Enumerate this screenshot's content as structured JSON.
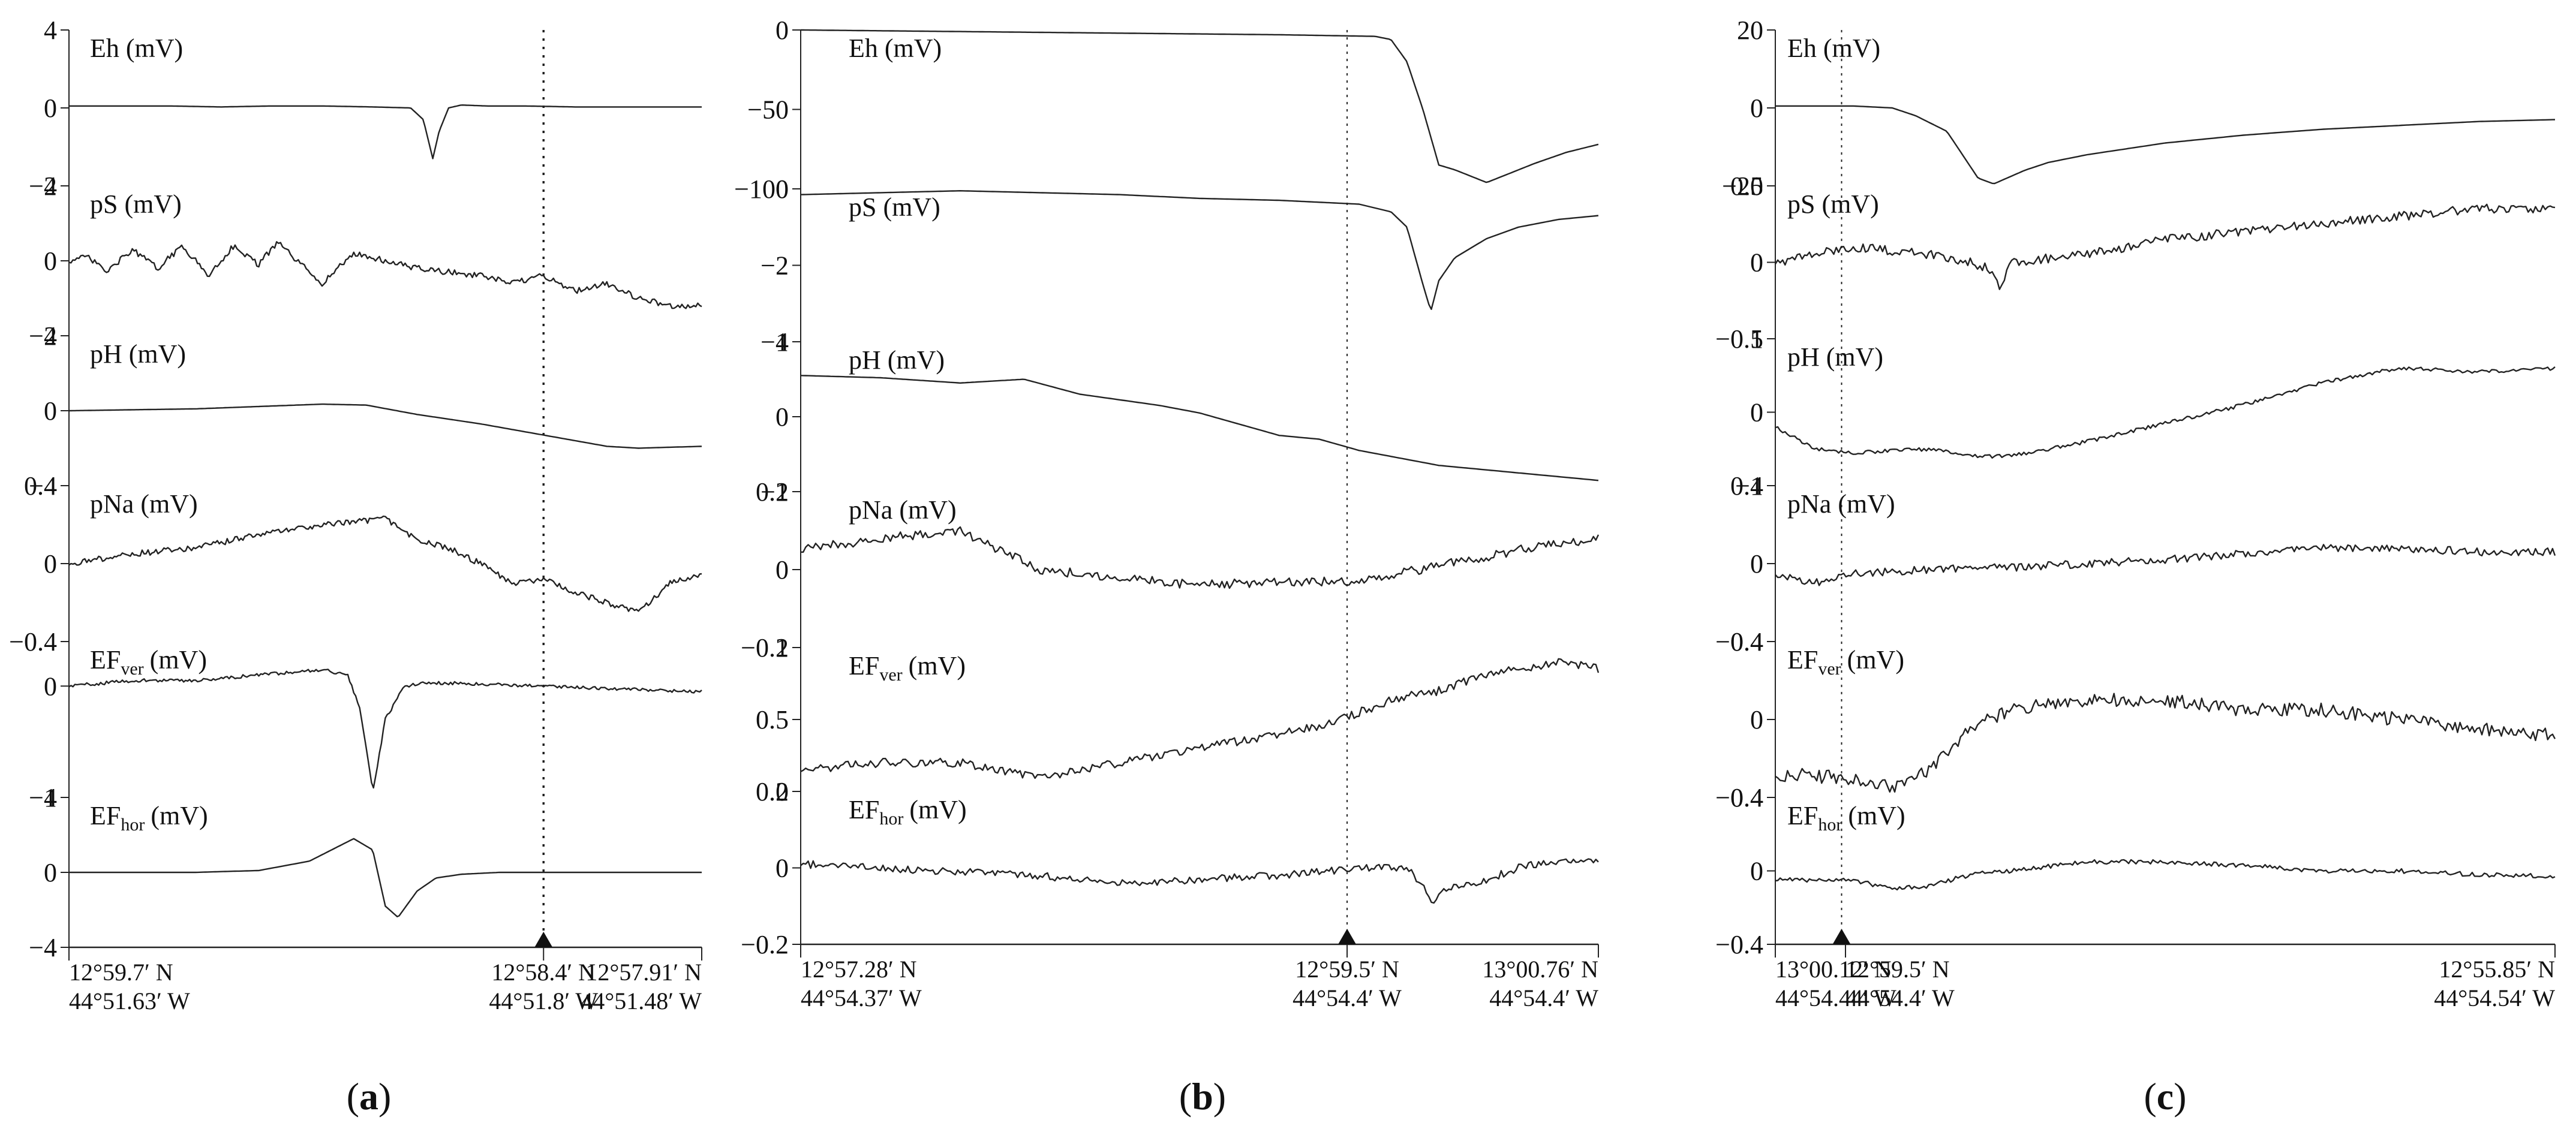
{
  "figure": {
    "subfigure_labels": [
      "a",
      "b",
      "c"
    ]
  },
  "chart_data": [
    {
      "type": "line",
      "id": "a",
      "caption": "a",
      "marker": {
        "dotted": true,
        "triangle": true
      },
      "panels": [
        {
          "label": "Eh",
          "sub": "",
          "unit": "(mV)",
          "ylim": [
            -4,
            4
          ],
          "ticks": [
            "4",
            "0",
            "−4"
          ],
          "tick_values": [
            4,
            0,
            -4
          ],
          "x": [
            0,
            0.08,
            0.16,
            0.24,
            0.32,
            0.4,
            0.48,
            0.54,
            0.56,
            0.575,
            0.585,
            0.6,
            0.62,
            0.66,
            0.72,
            0.8,
            0.9,
            1.0
          ],
          "y": [
            0.1,
            0.1,
            0.1,
            0.05,
            0.1,
            0.1,
            0.05,
            0.0,
            -0.6,
            -2.6,
            -1.2,
            0.0,
            0.15,
            0.1,
            0.1,
            0.05,
            0.05,
            0.05
          ]
        },
        {
          "label": "pS",
          "sub": "",
          "unit": "(mV)",
          "ylim": [
            -2,
            2
          ],
          "ticks": [
            "2",
            "0",
            "−2"
          ],
          "tick_values": [
            2,
            0,
            -2
          ],
          "noise": 0.08,
          "x": [
            0,
            0.03,
            0.06,
            0.1,
            0.14,
            0.18,
            0.22,
            0.26,
            0.3,
            0.33,
            0.36,
            0.4,
            0.45,
            0.5,
            0.55,
            0.6,
            0.65,
            0.7,
            0.75,
            0.8,
            0.85,
            0.9,
            0.95,
            1.0
          ],
          "y": [
            0.0,
            0.1,
            -0.3,
            0.3,
            -0.2,
            0.4,
            -0.4,
            0.4,
            -0.1,
            0.5,
            0.0,
            -0.6,
            0.2,
            0.0,
            -0.2,
            -0.3,
            -0.4,
            -0.6,
            -0.4,
            -0.8,
            -0.6,
            -1.0,
            -1.2,
            -1.2
          ]
        },
        {
          "label": "pH",
          "sub": "",
          "unit": "(mV)",
          "ylim": [
            -4,
            4
          ],
          "ticks": [
            "4",
            "0",
            "−4"
          ],
          "tick_values": [
            4,
            0,
            -4
          ],
          "x": [
            0,
            0.2,
            0.4,
            0.47,
            0.55,
            0.65,
            0.75,
            0.85,
            0.9,
            1.0
          ],
          "y": [
            0,
            0.1,
            0.35,
            0.3,
            -0.2,
            -0.7,
            -1.3,
            -1.9,
            -2.0,
            -1.9
          ]
        },
        {
          "label": "pNa",
          "sub": "",
          "unit": "(mV)",
          "ylim": [
            -0.4,
            0.4
          ],
          "ticks": [
            "0.4",
            "0",
            "−0.4"
          ],
          "tick_values": [
            0.4,
            0,
            -0.4
          ],
          "noise": 0.015,
          "x": [
            0,
            0.1,
            0.2,
            0.3,
            0.4,
            0.5,
            0.55,
            0.6,
            0.65,
            0.7,
            0.75,
            0.8,
            0.85,
            0.9,
            0.95,
            1.0
          ],
          "y": [
            0.0,
            0.05,
            0.08,
            0.15,
            0.2,
            0.23,
            0.12,
            0.08,
            0.0,
            -0.1,
            -0.08,
            -0.15,
            -0.2,
            -0.25,
            -0.1,
            -0.06
          ]
        },
        {
          "label": "EF",
          "sub": "ver",
          "unit": "(mV)",
          "ylim": [
            -1,
            0.4
          ],
          "ticks": [
            "0",
            "−1"
          ],
          "tick_values": [
            0,
            -1
          ],
          "noise": 0.015,
          "x": [
            0,
            0.1,
            0.2,
            0.3,
            0.4,
            0.44,
            0.46,
            0.48,
            0.5,
            0.53,
            0.56,
            0.65,
            0.75,
            0.85,
            1.0
          ],
          "y": [
            0.0,
            0.05,
            0.05,
            0.1,
            0.15,
            0.1,
            -0.2,
            -0.95,
            -0.3,
            0.0,
            0.03,
            0.02,
            0.0,
            -0.02,
            -0.05
          ]
        },
        {
          "label": "EF",
          "sub": "hor",
          "unit": "(mV)",
          "ylim": [
            -4,
            4
          ],
          "ticks": [
            "4",
            "0",
            "−4"
          ],
          "tick_values": [
            4,
            0,
            -4
          ],
          "x": [
            0,
            0.1,
            0.2,
            0.3,
            0.38,
            0.45,
            0.48,
            0.5,
            0.52,
            0.55,
            0.58,
            0.62,
            0.68,
            0.75,
            0.85,
            1.0
          ],
          "y": [
            0,
            0,
            0,
            0.1,
            0.6,
            1.8,
            1.2,
            -1.8,
            -2.4,
            -1.0,
            -0.3,
            -0.1,
            0.0,
            0.0,
            0.0,
            0.0
          ]
        }
      ],
      "x_annotations": [
        {
          "pos": 0.0,
          "anchor": "start",
          "lines": [
            "12°59.7′ N",
            "44°51.63′ W"
          ]
        },
        {
          "pos": 0.75,
          "anchor": "middle",
          "lines": [
            "12°58.4′ N",
            "44°51.8′ W"
          ]
        },
        {
          "pos": 1.0,
          "anchor": "end",
          "lines": [
            "12°57.91′ N",
            "44°51.48′ W"
          ]
        }
      ],
      "marker_pos": 0.75
    },
    {
      "type": "line",
      "id": "b",
      "caption": "b",
      "marker": {
        "dotted": true,
        "triangle": true
      },
      "panels": [
        {
          "label": "Eh",
          "sub": "",
          "unit": "(mV)",
          "ylim": [
            -100,
            0
          ],
          "ticks": [
            "0",
            "−50",
            "−100"
          ],
          "tick_values": [
            0,
            -50,
            -100
          ],
          "x": [
            0,
            0.2,
            0.4,
            0.6,
            0.72,
            0.74,
            0.76,
            0.78,
            0.8,
            0.82,
            0.84,
            0.86,
            0.88,
            0.92,
            0.96,
            1.0
          ],
          "y": [
            0,
            -1,
            -2,
            -3,
            -4,
            -6,
            -20,
            -50,
            -85,
            -88,
            -92,
            -96,
            -92,
            -84,
            -77,
            -72
          ]
        },
        {
          "label": "pS",
          "sub": "",
          "unit": "(mV)",
          "ylim": [
            -4,
            0
          ],
          "ticks": [
            "0",
            "−2",
            "−4"
          ],
          "tick_values": [
            0,
            -2,
            -4
          ],
          "x": [
            0,
            0.1,
            0.2,
            0.3,
            0.4,
            0.5,
            0.6,
            0.7,
            0.74,
            0.76,
            0.78,
            0.79,
            0.8,
            0.82,
            0.86,
            0.9,
            0.95,
            1.0
          ],
          "y": [
            -0.15,
            -0.1,
            -0.05,
            -0.1,
            -0.15,
            -0.25,
            -0.3,
            -0.4,
            -0.6,
            -1.0,
            -2.5,
            -3.2,
            -2.4,
            -1.8,
            -1.3,
            -1.0,
            -0.8,
            -0.7
          ]
        },
        {
          "label": "pH",
          "sub": "",
          "unit": "(mV)",
          "ylim": [
            -1,
            1
          ],
          "ticks": [
            "1",
            "0",
            "−1"
          ],
          "tick_values": [
            1,
            0,
            -1
          ],
          "x": [
            0,
            0.1,
            0.2,
            0.28,
            0.35,
            0.45,
            0.5,
            0.55,
            0.6,
            0.65,
            0.7,
            0.75,
            0.8,
            0.85,
            0.9,
            0.95,
            1.0
          ],
          "y": [
            0.55,
            0.52,
            0.45,
            0.5,
            0.3,
            0.15,
            0.05,
            -0.1,
            -0.25,
            -0.3,
            -0.45,
            -0.55,
            -0.65,
            -0.7,
            -0.75,
            -0.8,
            -0.85
          ]
        },
        {
          "label": "pNa",
          "sub": "",
          "unit": "(mV)",
          "ylim": [
            -0.2,
            0.2
          ],
          "ticks": [
            "0.2",
            "0",
            "−0.2"
          ],
          "tick_values": [
            0.2,
            0,
            -0.2
          ],
          "noise": 0.012,
          "x": [
            0,
            0.1,
            0.2,
            0.25,
            0.3,
            0.4,
            0.5,
            0.6,
            0.7,
            0.75,
            0.8,
            0.9,
            1.0
          ],
          "y": [
            0.05,
            0.08,
            0.1,
            0.05,
            0.0,
            -0.02,
            -0.04,
            -0.03,
            -0.03,
            -0.01,
            0.01,
            0.05,
            0.08
          ]
        },
        {
          "label": "EF",
          "sub": "ver",
          "unit": "(mV)",
          "ylim": [
            0,
            1
          ],
          "ticks": [
            "1",
            "0.5",
            "0"
          ],
          "tick_values": [
            1,
            0.5,
            0
          ],
          "noise": 0.03,
          "x": [
            0,
            0.1,
            0.2,
            0.3,
            0.4,
            0.5,
            0.6,
            0.65,
            0.7,
            0.75,
            0.8,
            0.85,
            0.9,
            0.95,
            1.0
          ],
          "y": [
            0.15,
            0.2,
            0.2,
            0.1,
            0.2,
            0.3,
            0.4,
            0.45,
            0.55,
            0.65,
            0.7,
            0.8,
            0.85,
            0.9,
            0.85
          ]
        },
        {
          "label": "EF",
          "sub": "hor",
          "unit": "(mV)",
          "ylim": [
            -0.2,
            0.2
          ],
          "ticks": [
            "0.2",
            "0",
            "−0.2"
          ],
          "tick_values": [
            0.2,
            0,
            -0.2
          ],
          "noise": 0.01,
          "x": [
            0,
            0.1,
            0.2,
            0.3,
            0.4,
            0.5,
            0.6,
            0.7,
            0.76,
            0.78,
            0.79,
            0.8,
            0.82,
            0.86,
            0.9,
            0.95,
            1.0
          ],
          "y": [
            0.01,
            0.0,
            -0.01,
            -0.02,
            -0.04,
            -0.03,
            -0.02,
            0.0,
            0.0,
            -0.05,
            -0.09,
            -0.07,
            -0.05,
            -0.03,
            0.0,
            0.02,
            0.02
          ]
        }
      ],
      "x_annotations": [
        {
          "pos": 0.0,
          "anchor": "start",
          "lines": [
            "12°57.28′ N",
            "44°54.37′ W"
          ]
        },
        {
          "pos": 0.685,
          "anchor": "middle",
          "lines": [
            "12°59.5′ N",
            "44°54.4′ W"
          ]
        },
        {
          "pos": 1.0,
          "anchor": "end",
          "lines": [
            "13°00.76′ N",
            "44°54.4′ W"
          ]
        }
      ],
      "marker_pos": 0.685
    },
    {
      "type": "line",
      "id": "c",
      "caption": "c",
      "marker": {
        "dotted": true,
        "triangle": true
      },
      "panels": [
        {
          "label": "Eh",
          "sub": "",
          "unit": "(mV)",
          "ylim": [
            -20,
            20
          ],
          "ticks": [
            "20",
            "0",
            "−20"
          ],
          "tick_values": [
            20,
            0,
            -20
          ],
          "x": [
            0,
            0.1,
            0.15,
            0.18,
            0.22,
            0.26,
            0.28,
            0.32,
            0.35,
            0.4,
            0.5,
            0.6,
            0.7,
            0.8,
            0.9,
            1.0
          ],
          "y": [
            0.5,
            0.5,
            0.0,
            -2.0,
            -6.0,
            -18.0,
            -19.5,
            -16.0,
            -14.0,
            -12.0,
            -9.0,
            -7.0,
            -5.5,
            -4.5,
            -3.5,
            -3.0
          ]
        },
        {
          "label": "pS",
          "sub": "",
          "unit": "(mV)",
          "ylim": [
            -0.5,
            0.5
          ],
          "ticks": [
            "0.5",
            "0",
            "−0.5"
          ],
          "tick_values": [
            0.5,
            0,
            -0.5
          ],
          "noise": 0.03,
          "x": [
            0,
            0.1,
            0.2,
            0.25,
            0.28,
            0.29,
            0.3,
            0.4,
            0.5,
            0.6,
            0.7,
            0.8,
            0.9,
            1.0
          ],
          "y": [
            0.0,
            0.1,
            0.05,
            0.0,
            -0.05,
            -0.18,
            0.0,
            0.05,
            0.15,
            0.2,
            0.25,
            0.3,
            0.35,
            0.35
          ]
        },
        {
          "label": "pH",
          "sub": "",
          "unit": "(mV)",
          "ylim": [
            -1,
            1
          ],
          "ticks": [
            "1",
            "0",
            "−1"
          ],
          "tick_values": [
            1,
            0,
            -1
          ],
          "noise": 0.025,
          "x": [
            0,
            0.05,
            0.1,
            0.2,
            0.25,
            0.3,
            0.4,
            0.5,
            0.6,
            0.7,
            0.8,
            0.9,
            1.0
          ],
          "y": [
            -0.2,
            -0.5,
            -0.55,
            -0.5,
            -0.6,
            -0.6,
            -0.4,
            -0.15,
            0.1,
            0.4,
            0.6,
            0.55,
            0.6
          ]
        },
        {
          "label": "pNa",
          "sub": "",
          "unit": "(mV)",
          "ylim": [
            -0.4,
            0.4
          ],
          "ticks": [
            "0.4",
            "0",
            "−0.4"
          ],
          "tick_values": [
            0.4,
            0,
            -0.4
          ],
          "noise": 0.02,
          "x": [
            0,
            0.05,
            0.1,
            0.2,
            0.3,
            0.4,
            0.5,
            0.6,
            0.7,
            0.8,
            0.9,
            1.0
          ],
          "y": [
            -0.05,
            -0.1,
            -0.05,
            -0.03,
            -0.02,
            0.0,
            0.02,
            0.05,
            0.08,
            0.08,
            0.06,
            0.06
          ]
        },
        {
          "label": "EF",
          "sub": "ver",
          "unit": "(mV)",
          "ylim": [
            -0.4,
            0.4
          ],
          "ticks": [
            "0.4",
            "0",
            "−0.4"
          ],
          "tick_values": [
            0.4,
            0,
            -0.4
          ],
          "noise": 0.035,
          "x": [
            0,
            0.1,
            0.15,
            0.2,
            0.25,
            0.3,
            0.4,
            0.5,
            0.6,
            0.7,
            0.8,
            0.9,
            1.0
          ],
          "y": [
            -0.28,
            -0.3,
            -0.35,
            -0.25,
            -0.05,
            0.05,
            0.1,
            0.1,
            0.05,
            0.05,
            0.0,
            -0.05,
            -0.08
          ]
        },
        {
          "label": "EF",
          "sub": "hor",
          "unit": "(mV)",
          "ylim": [
            -0.4,
            0.4
          ],
          "ticks": [
            "0.4",
            "0",
            "−0.4"
          ],
          "tick_values": [
            0.4,
            0,
            -0.4
          ],
          "noise": 0.012,
          "x": [
            0,
            0.1,
            0.15,
            0.2,
            0.25,
            0.3,
            0.4,
            0.5,
            0.6,
            0.7,
            0.8,
            0.9,
            1.0
          ],
          "y": [
            -0.05,
            -0.05,
            -0.1,
            -0.08,
            -0.02,
            0.0,
            0.05,
            0.05,
            0.03,
            0.0,
            0.0,
            -0.02,
            -0.03
          ]
        }
      ],
      "x_annotations": [
        {
          "pos": 0.0,
          "anchor": "start",
          "lines": [
            "13°00.12′ N",
            "44°54.44′ W"
          ]
        },
        {
          "pos": 0.09,
          "anchor": "start",
          "lines": [
            "12°59.5′ N",
            "44°54.4′ W"
          ]
        },
        {
          "pos": 1.0,
          "anchor": "end",
          "lines": [
            "12°55.85′ N",
            "44°54.54′ W"
          ]
        }
      ],
      "marker_pos": 0.085
    }
  ]
}
